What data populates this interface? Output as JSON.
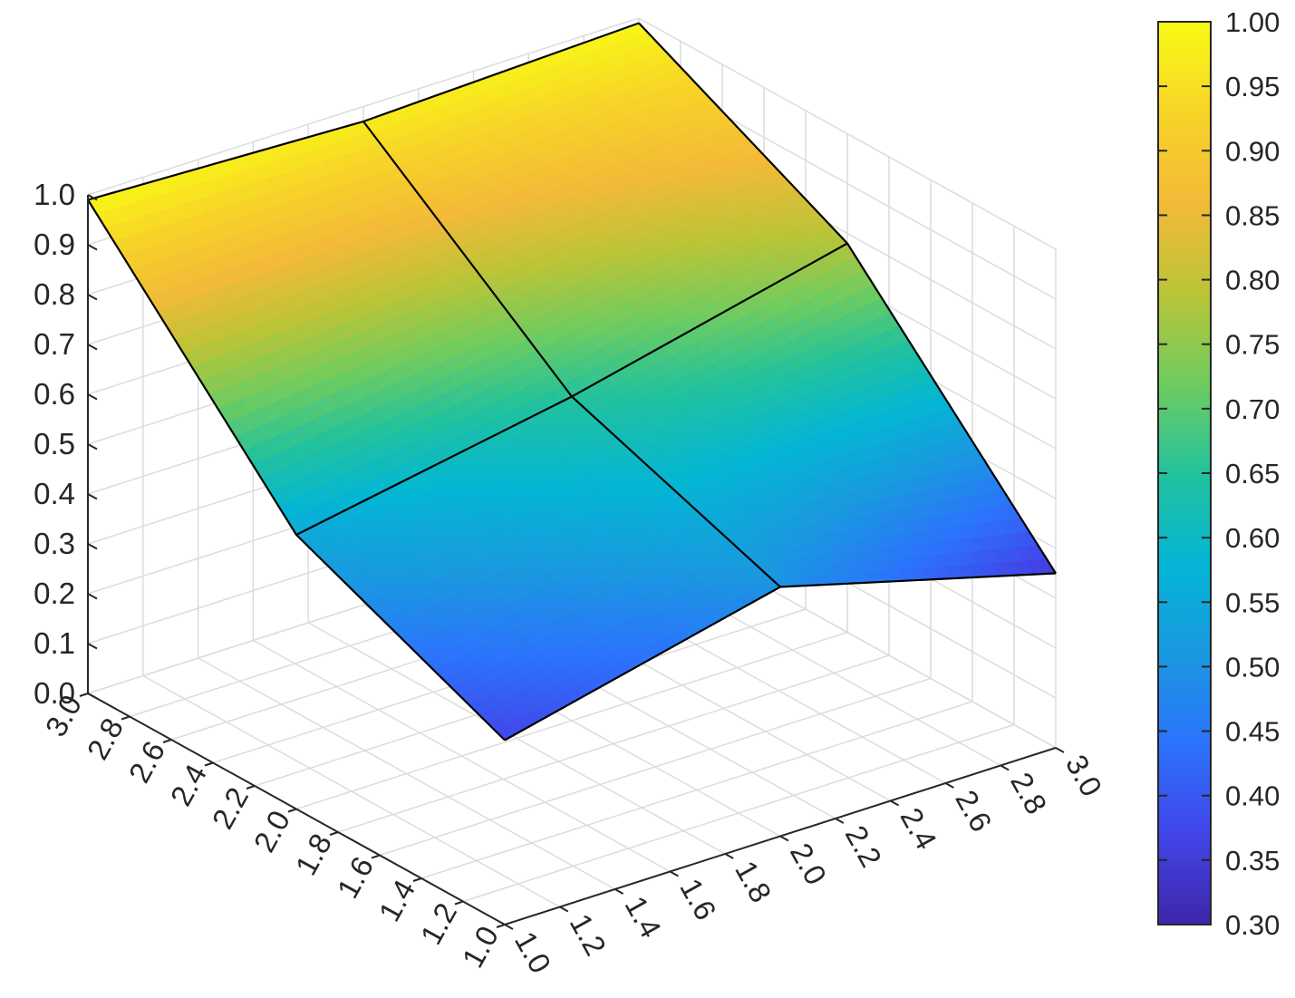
{
  "chart_data": {
    "type": "surface3d",
    "title": "",
    "xlabel": "",
    "ylabel": "",
    "zlabel": "",
    "grid": true,
    "colormap": "parula",
    "x": [
      1,
      2,
      3
    ],
    "y": [
      1,
      2,
      3
    ],
    "z": [
      [
        0.37,
        0.5,
        0.35
      ],
      [
        0.55,
        0.65,
        0.78
      ],
      [
        0.99,
        0.97,
        0.99
      ]
    ],
    "xlim": [
      1,
      3
    ],
    "ylim": [
      1,
      3
    ],
    "zlim": [
      0,
      1
    ],
    "x_ticks": [
      "1.0",
      "1.2",
      "1.4",
      "1.6",
      "1.8",
      "2.0",
      "2.2",
      "2.4",
      "2.6",
      "2.8",
      "3.0"
    ],
    "y_ticks": [
      "1.0",
      "1.2",
      "1.4",
      "1.6",
      "1.8",
      "2.0",
      "2.2",
      "2.4",
      "2.6",
      "2.8",
      "3.0"
    ],
    "z_ticks": [
      "0.0",
      "0.1",
      "0.2",
      "0.3",
      "0.4",
      "0.5",
      "0.6",
      "0.7",
      "0.8",
      "0.9",
      "1.0"
    ],
    "colorbar": {
      "position": "right",
      "range": [
        0.3,
        1.0
      ],
      "ticks": [
        "0.30",
        "0.35",
        "0.40",
        "0.45",
        "0.50",
        "0.55",
        "0.60",
        "0.65",
        "0.70",
        "0.75",
        "0.80",
        "0.85",
        "0.90",
        "0.95",
        "1.00"
      ]
    }
  }
}
